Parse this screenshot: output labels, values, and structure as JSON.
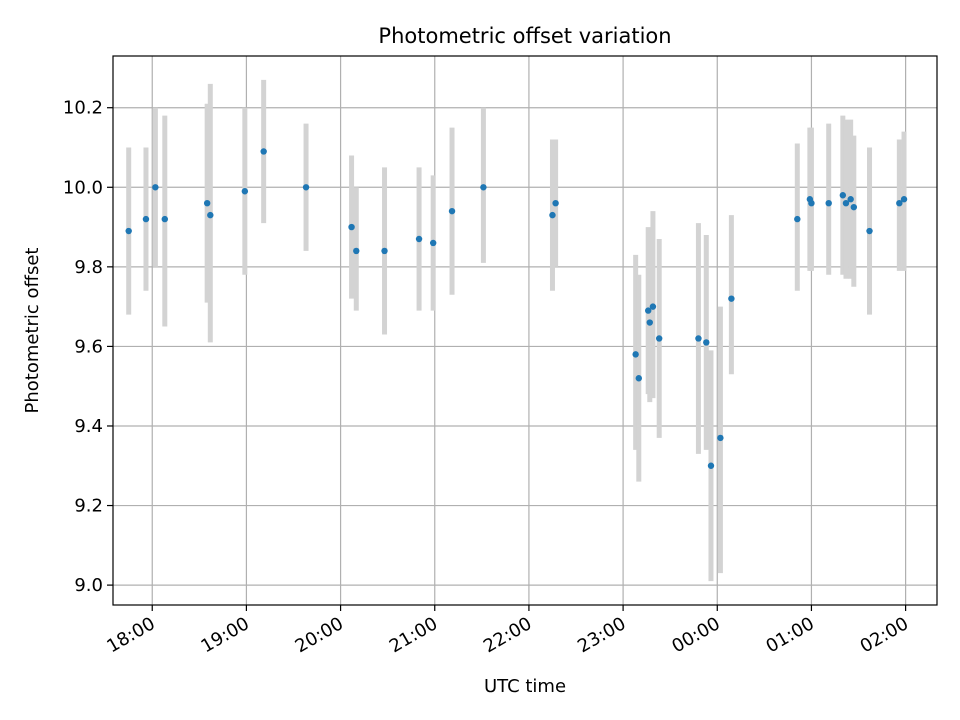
{
  "chart_data": {
    "type": "scatter",
    "title": "Photometric offset variation",
    "xlabel": "UTC time",
    "ylabel": "Photometric offset",
    "x_unit": "hours (UTC, continuous past midnight)",
    "xlim": [
      "17:35",
      "02:20"
    ],
    "ylim": [
      8.95,
      10.33
    ],
    "grid": true,
    "x_ticks": [
      "18:00",
      "19:00",
      "20:00",
      "21:00",
      "22:00",
      "23:00",
      "00:00",
      "01:00",
      "02:00"
    ],
    "y_ticks": [
      "9.0",
      "9.2",
      "9.4",
      "9.6",
      "9.8",
      "10.0",
      "10.2"
    ],
    "colors": {
      "point": "#1f77b4",
      "errorbar": "#d3d3d3",
      "grid": "#b0b0b0"
    },
    "series": [
      {
        "points": [
          {
            "x": "17:45",
            "y": 9.89,
            "ylo": 9.68,
            "yhi": 10.1
          },
          {
            "x": "17:56",
            "y": 9.92,
            "ylo": 9.74,
            "yhi": 10.1
          },
          {
            "x": "18:02",
            "y": 10.0,
            "ylo": 9.8,
            "yhi": 10.2
          },
          {
            "x": "18:08",
            "y": 9.92,
            "ylo": 9.65,
            "yhi": 10.18
          },
          {
            "x": "18:35",
            "y": 9.96,
            "ylo": 9.71,
            "yhi": 10.21
          },
          {
            "x": "18:37",
            "y": 9.93,
            "ylo": 9.61,
            "yhi": 10.26
          },
          {
            "x": "18:59",
            "y": 9.99,
            "ylo": 9.78,
            "yhi": 10.2
          },
          {
            "x": "19:11",
            "y": 10.09,
            "ylo": 9.91,
            "yhi": 10.27
          },
          {
            "x": "19:38",
            "y": 10.0,
            "ylo": 9.84,
            "yhi": 10.16
          },
          {
            "x": "20:07",
            "y": 9.9,
            "ylo": 9.72,
            "yhi": 10.08
          },
          {
            "x": "20:10",
            "y": 9.84,
            "ylo": 9.69,
            "yhi": 10.0
          },
          {
            "x": "20:28",
            "y": 9.84,
            "ylo": 9.63,
            "yhi": 10.05
          },
          {
            "x": "20:50",
            "y": 9.87,
            "ylo": 9.69,
            "yhi": 10.05
          },
          {
            "x": "20:59",
            "y": 9.86,
            "ylo": 9.69,
            "yhi": 10.03
          },
          {
            "x": "21:11",
            "y": 9.94,
            "ylo": 9.73,
            "yhi": 10.15
          },
          {
            "x": "21:31",
            "y": 10.0,
            "ylo": 9.81,
            "yhi": 10.2
          },
          {
            "x": "22:15",
            "y": 9.93,
            "ylo": 9.74,
            "yhi": 10.12
          },
          {
            "x": "22:17",
            "y": 9.96,
            "ylo": 9.8,
            "yhi": 10.12
          },
          {
            "x": "23:08",
            "y": 9.58,
            "ylo": 9.34,
            "yhi": 9.83
          },
          {
            "x": "23:10",
            "y": 9.52,
            "ylo": 9.26,
            "yhi": 9.78
          },
          {
            "x": "23:16",
            "y": 9.69,
            "ylo": 9.48,
            "yhi": 9.9
          },
          {
            "x": "23:17",
            "y": 9.66,
            "ylo": 9.46,
            "yhi": 9.88
          },
          {
            "x": "23:19",
            "y": 9.7,
            "ylo": 9.47,
            "yhi": 9.94
          },
          {
            "x": "23:23",
            "y": 9.62,
            "ylo": 9.37,
            "yhi": 9.87
          },
          {
            "x": "23:48",
            "y": 9.62,
            "ylo": 9.33,
            "yhi": 9.91
          },
          {
            "x": "23:53",
            "y": 9.61,
            "ylo": 9.34,
            "yhi": 9.88
          },
          {
            "x": "23:56",
            "y": 9.3,
            "ylo": 9.01,
            "yhi": 9.59
          },
          {
            "x": "00:02",
            "y": 9.37,
            "ylo": 9.03,
            "yhi": 9.7
          },
          {
            "x": "00:09",
            "y": 9.72,
            "ylo": 9.53,
            "yhi": 9.93
          },
          {
            "x": "00:51",
            "y": 9.92,
            "ylo": 9.74,
            "yhi": 10.11
          },
          {
            "x": "00:59",
            "y": 9.97,
            "ylo": 9.79,
            "yhi": 10.15
          },
          {
            "x": "01:00",
            "y": 9.96,
            "ylo": 9.79,
            "yhi": 10.15
          },
          {
            "x": "01:11",
            "y": 9.96,
            "ylo": 9.78,
            "yhi": 10.16
          },
          {
            "x": "01:20",
            "y": 9.98,
            "ylo": 9.78,
            "yhi": 10.18
          },
          {
            "x": "01:22",
            "y": 9.96,
            "ylo": 9.77,
            "yhi": 10.17
          },
          {
            "x": "01:25",
            "y": 9.97,
            "ylo": 9.77,
            "yhi": 10.17
          },
          {
            "x": "01:27",
            "y": 9.95,
            "ylo": 9.75,
            "yhi": 10.13
          },
          {
            "x": "01:37",
            "y": 9.89,
            "ylo": 9.68,
            "yhi": 10.1
          },
          {
            "x": "01:56",
            "y": 9.96,
            "ylo": 9.79,
            "yhi": 10.12
          },
          {
            "x": "01:59",
            "y": 9.97,
            "ylo": 9.79,
            "yhi": 10.14
          }
        ]
      }
    ]
  }
}
